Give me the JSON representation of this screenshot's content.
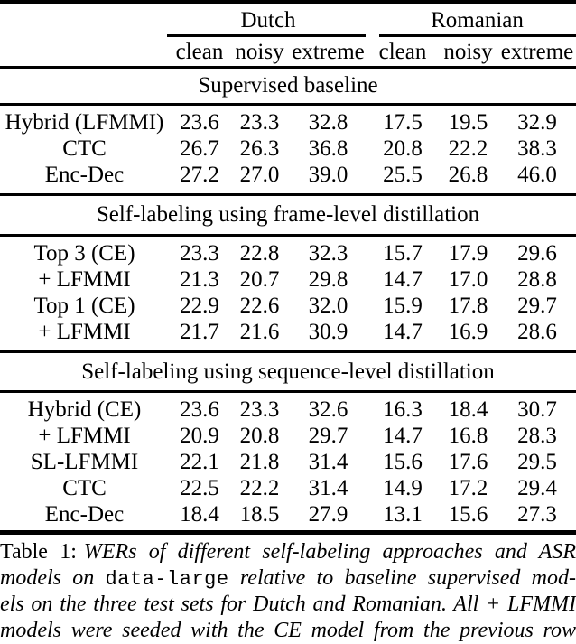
{
  "table": {
    "language_headers": [
      "Dutch",
      "Romanian"
    ],
    "condition_headers": [
      "clean",
      "noisy",
      "extreme",
      "clean",
      "noisy",
      "extreme"
    ],
    "sections": [
      {
        "title": "Supervised baseline",
        "rows": [
          {
            "label": "Hybrid (LFMMI)",
            "values": [
              "23.6",
              "23.3",
              "32.8",
              "17.5",
              "19.5",
              "32.9"
            ]
          },
          {
            "label": "CTC",
            "values": [
              "26.7",
              "26.3",
              "36.8",
              "20.8",
              "22.2",
              "38.3"
            ]
          },
          {
            "label": "Enc-Dec",
            "values": [
              "27.2",
              "27.0",
              "39.0",
              "25.5",
              "26.8",
              "46.0"
            ]
          }
        ]
      },
      {
        "title": "Self-labeling using frame-level distillation",
        "rows": [
          {
            "label": "Top 3 (CE)",
            "values": [
              "23.3",
              "22.8",
              "32.3",
              "15.7",
              "17.9",
              "29.6"
            ]
          },
          {
            "label": "+ LFMMI",
            "values": [
              "21.3",
              "20.7",
              "29.8",
              "14.7",
              "17.0",
              "28.8"
            ]
          },
          {
            "label": "Top 1 (CE)",
            "values": [
              "22.9",
              "22.6",
              "32.0",
              "15.9",
              "17.8",
              "29.7"
            ]
          },
          {
            "label": "+ LFMMI",
            "values": [
              "21.7",
              "21.6",
              "30.9",
              "14.7",
              "16.9",
              "28.6"
            ]
          }
        ]
      },
      {
        "title": "Self-labeling using sequence-level distillation",
        "rows": [
          {
            "label": "Hybrid (CE)",
            "values": [
              "23.6",
              "23.3",
              "32.6",
              "16.3",
              "18.4",
              "30.7"
            ]
          },
          {
            "label": "+ LFMMI",
            "values": [
              "20.9",
              "20.8",
              "29.7",
              "14.7",
              "16.8",
              "28.3"
            ]
          },
          {
            "label": "SL-LFMMI",
            "values": [
              "22.1",
              "21.8",
              "31.4",
              "15.6",
              "17.6",
              "29.5"
            ]
          },
          {
            "label": "CTC",
            "values": [
              "22.5",
              "22.2",
              "31.4",
              "14.9",
              "17.2",
              "29.4"
            ]
          },
          {
            "label": "Enc-Dec",
            "values": [
              "18.4",
              "18.5",
              "27.9",
              "13.1",
              "15.6",
              "27.3"
            ]
          }
        ]
      }
    ]
  },
  "caption": {
    "label": "Table 1:",
    "line1": "WERs of different self-labeling approaches and ASR",
    "line2_pre": "models on ",
    "line2_code": "data-large",
    "line2_post": " relative to baseline supervised mod-",
    "line3": "els on the three test sets for Dutch and Romanian. All + LFMMI",
    "line4": "models were seeded with the CE model from the previous row"
  }
}
